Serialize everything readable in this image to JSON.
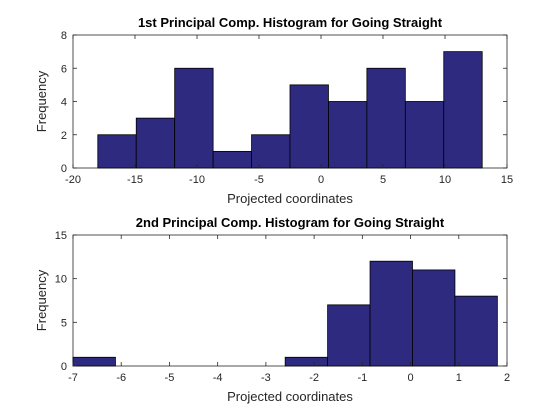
{
  "chart_data": [
    {
      "type": "bar",
      "title": "1st Principal Comp. Histogram for Going Straight",
      "xlabel": "Projected coordinates",
      "ylabel": "Frequency",
      "xlim": [
        -20,
        15
      ],
      "ylim": [
        0,
        8
      ],
      "xticks": [
        "-20",
        "-15",
        "-10",
        "-5",
        "0",
        "5",
        "10",
        "15"
      ],
      "yticks": [
        "0",
        "2",
        "4",
        "6",
        "8"
      ],
      "bin_edges": [
        -18.0,
        -14.9,
        -11.8,
        -8.7,
        -5.6,
        -2.5,
        0.6,
        3.7,
        6.8,
        9.9,
        13.0
      ],
      "values": [
        2,
        3,
        6,
        1,
        2,
        5,
        4,
        6,
        4,
        7
      ],
      "bar_color": "#2d2a80"
    },
    {
      "type": "bar",
      "title": "2nd Principal Comp. Histogram for Going Straight",
      "xlabel": "Projected coordinates",
      "ylabel": "Frequency",
      "xlim": [
        -7,
        2
      ],
      "ylim": [
        0,
        15
      ],
      "xticks": [
        "-7",
        "-6",
        "-5",
        "-4",
        "-3",
        "-2",
        "-1",
        "0",
        "1",
        "2"
      ],
      "yticks": [
        "0",
        "5",
        "10",
        "15"
      ],
      "bin_edges": [
        -7.0,
        -6.12,
        -5.24,
        -4.36,
        -3.48,
        -2.6,
        -1.72,
        -0.84,
        0.04,
        0.92,
        1.8
      ],
      "values": [
        1,
        0,
        0,
        0,
        0,
        1,
        7,
        12,
        11,
        8
      ],
      "bar_color": "#2d2a80"
    }
  ]
}
